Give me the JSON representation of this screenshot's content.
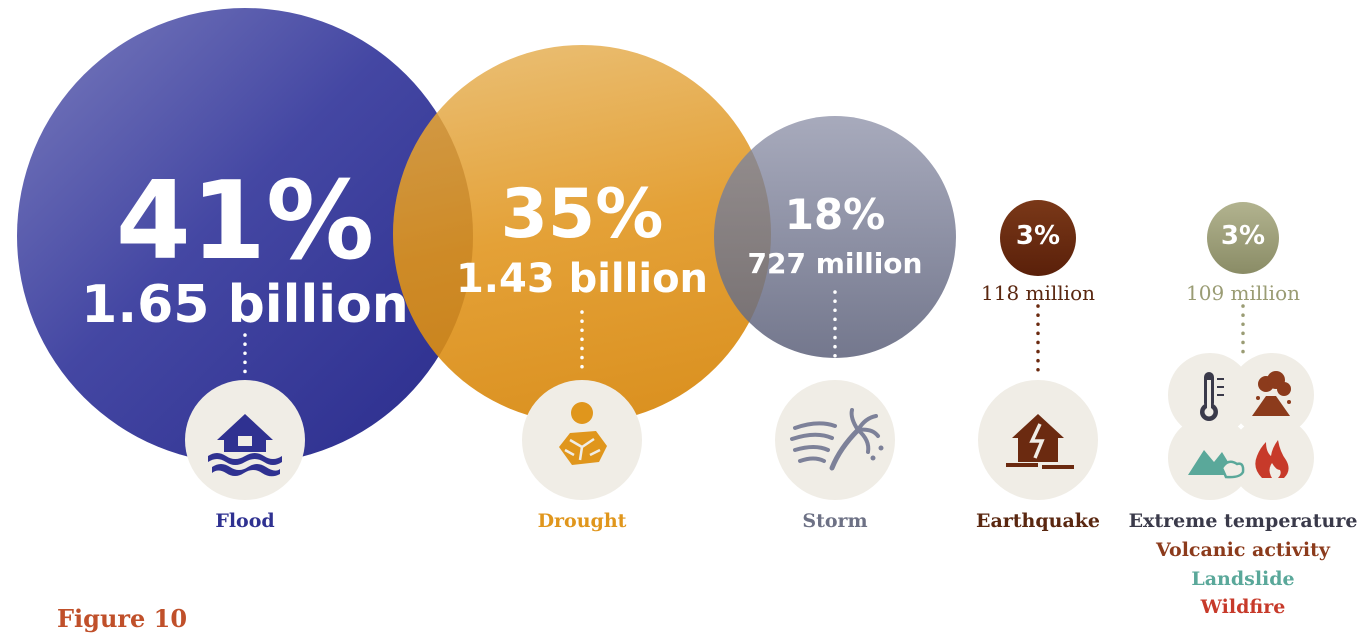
{
  "chart_data": {
    "type": "bubble",
    "categories": [
      "Flood",
      "Drought",
      "Storm",
      "Earthquake",
      "Extreme temperature / Volcanic activity / Landslide / Wildfire"
    ],
    "percent_values": [
      41,
      35,
      18,
      3,
      3
    ],
    "percent_labels": [
      "41%",
      "35%",
      "18%",
      "3%",
      "3%"
    ],
    "people_labels": [
      "1.65 billion",
      "1.43 billion",
      "727 million",
      "118 million",
      "109 million"
    ],
    "people_values_millions": [
      1650,
      1430,
      727,
      118,
      109
    ],
    "colors": {
      "flood": "#2f3191",
      "drought": "#e0961c",
      "storm": "#7d8199",
      "earthquake": "#6b2a10",
      "other": "#9a9c74",
      "icon_bg": "#f0ede6"
    },
    "label_colors": {
      "flood": "#2f3191",
      "drought": "#e0961c",
      "storm": "#6d7185",
      "earthquake": "#5a2710",
      "extreme_temperature": "#3a3a4a",
      "volcanic_activity": "#8c3b1c",
      "landslide": "#5aa89a",
      "wildfire": "#c73a2a"
    },
    "icons": [
      "flood-house-icon",
      "drought-sun-icon",
      "storm-wind-icon",
      "earthquake-house-icon",
      "thermometer-icon",
      "volcano-icon",
      "landslide-icon",
      "wildfire-icon"
    ]
  },
  "labels": {
    "flood": "Flood",
    "drought": "Drought",
    "storm": "Storm",
    "earthquake": "Earthquake",
    "extreme_temperature": "Extreme temperature",
    "volcanic_activity": "Volcanic activity",
    "landslide": "Landslide",
    "wildfire": "Wildfire"
  },
  "caption": "Figure 10"
}
